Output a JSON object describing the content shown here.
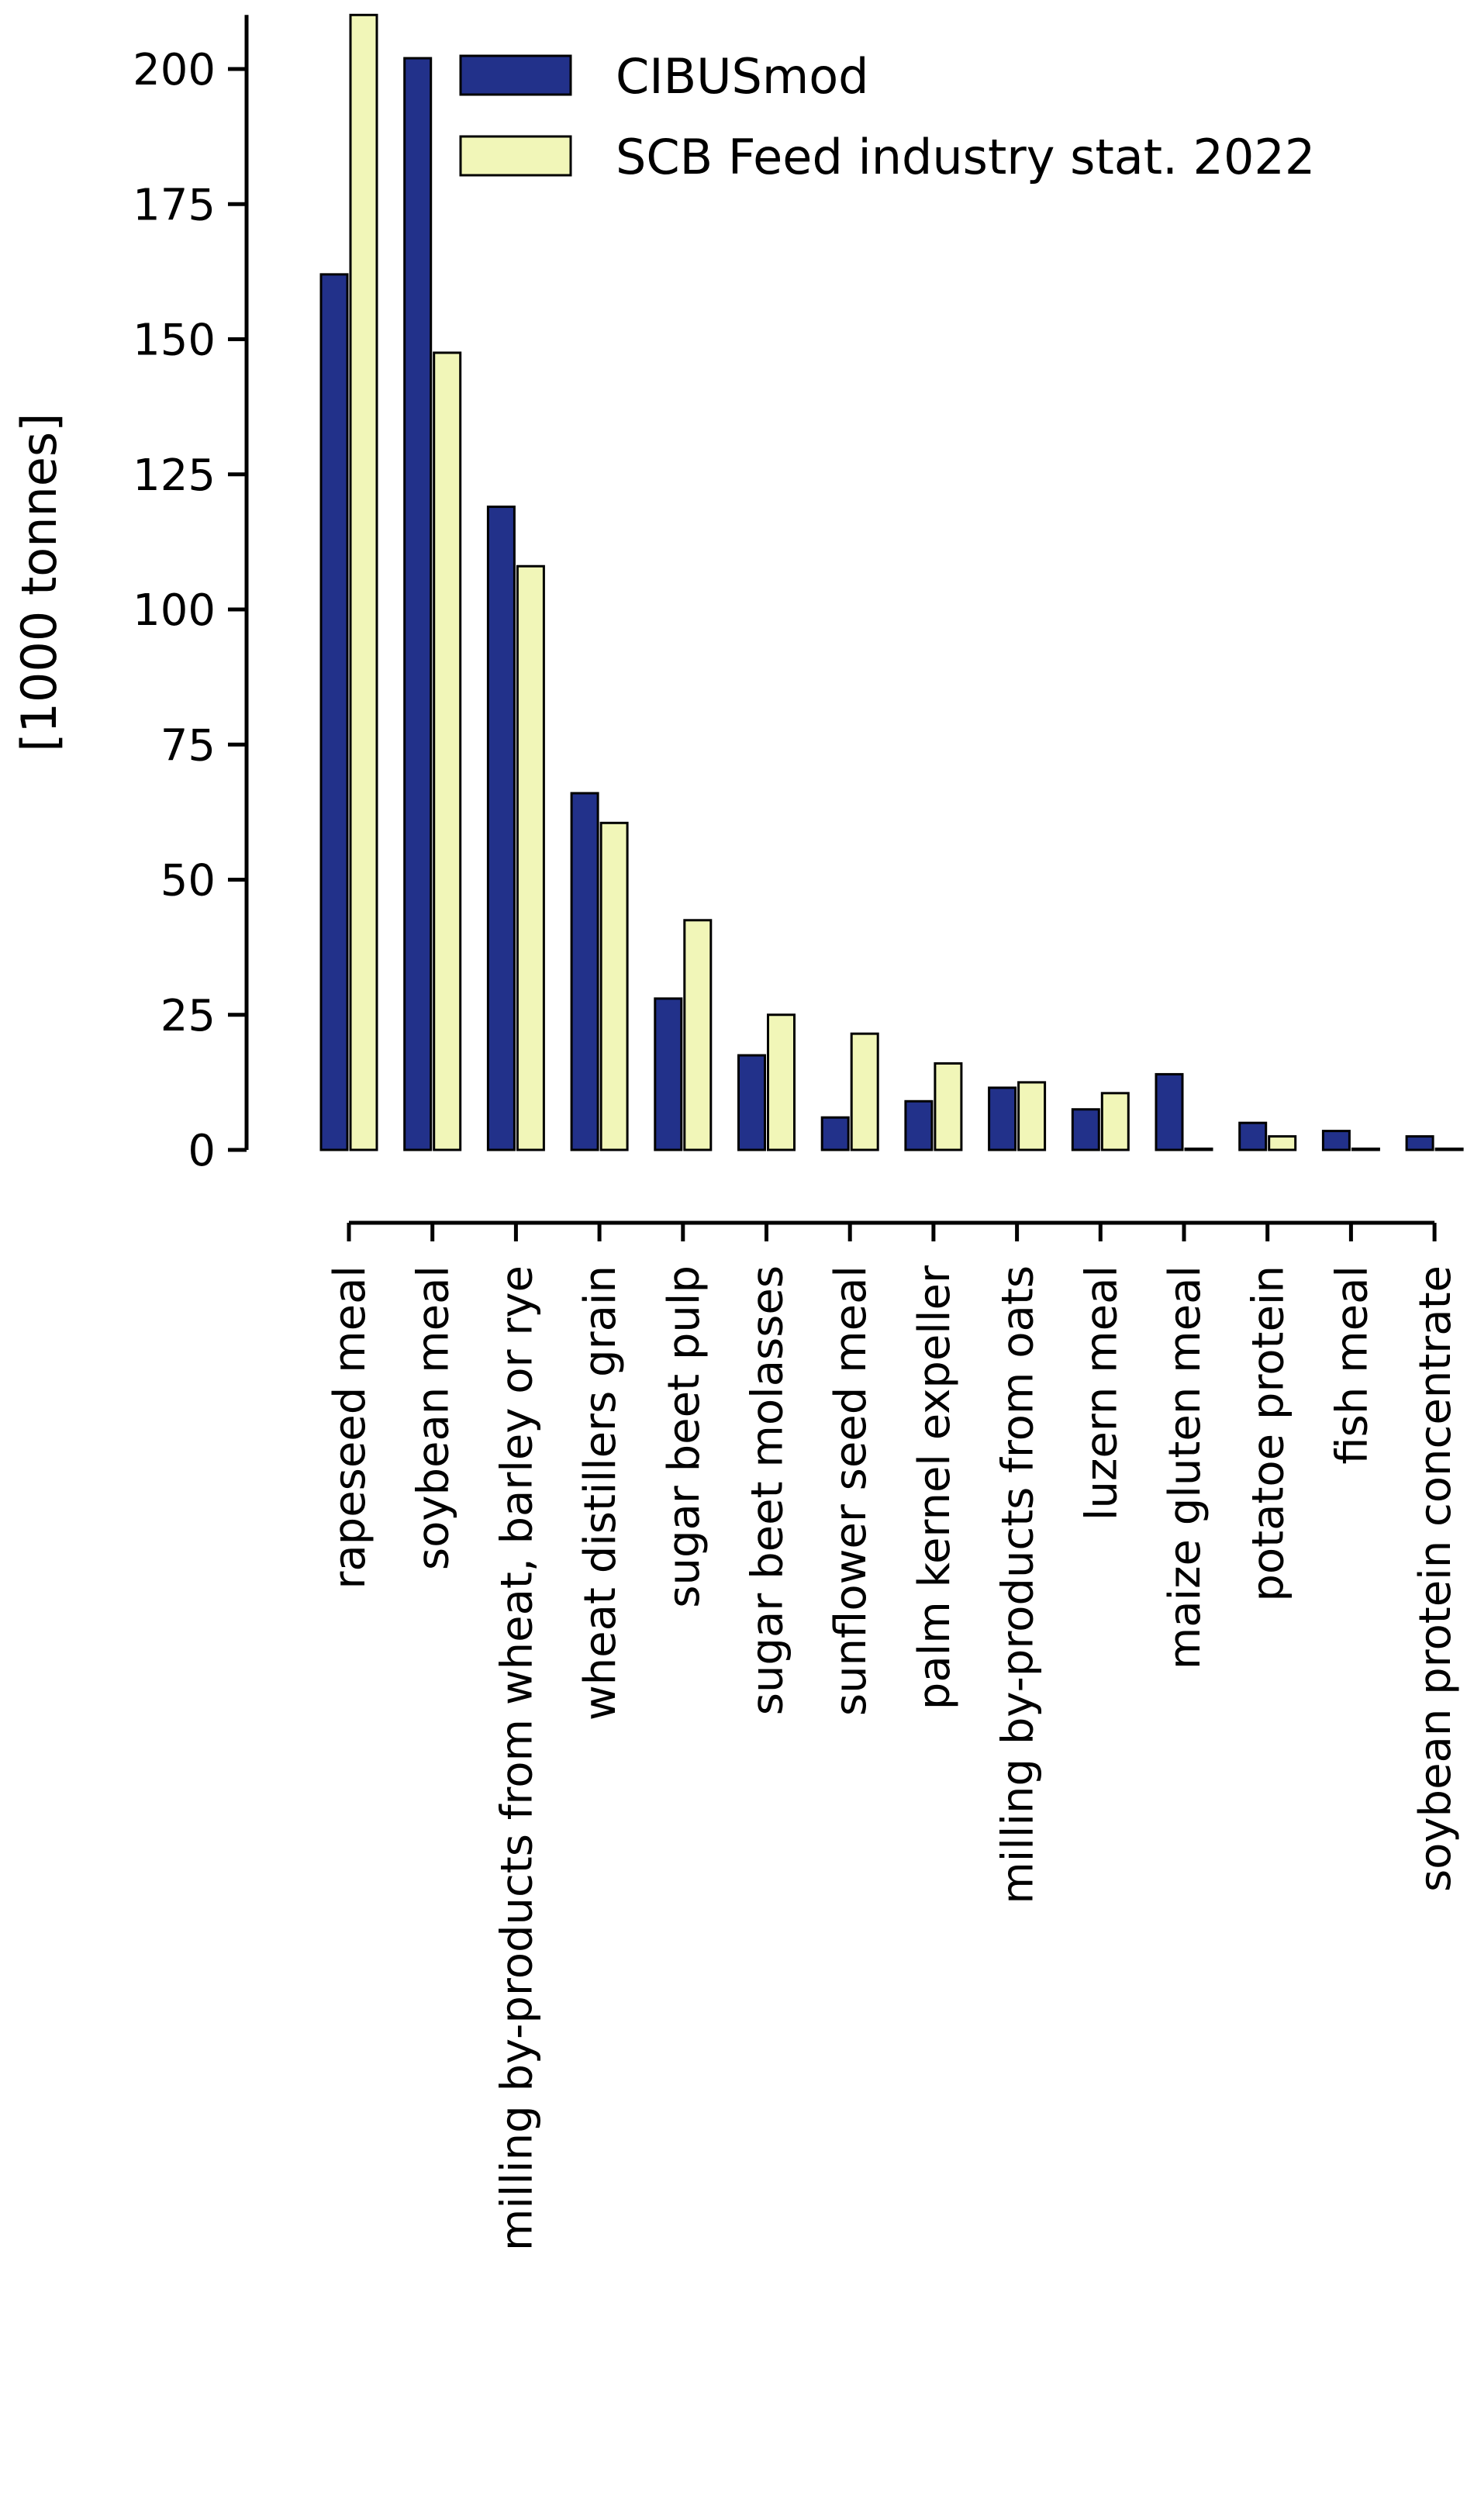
{
  "chart_data": {
    "type": "bar",
    "title": "",
    "xlabel": "",
    "ylabel": "[1000 tonnes]",
    "ylim": [
      0,
      210
    ],
    "yticks": [
      0,
      25,
      50,
      75,
      100,
      125,
      150,
      175,
      200
    ],
    "grid": false,
    "legend_position": "top-right",
    "categories": [
      "rapeseed meal",
      "soybean meal",
      "milling by-products from wheat, barley or rye",
      "wheat distillers grain",
      "sugar beet pulp",
      "sugar beet molasses",
      "sunflower seed meal",
      "palm kernel expeller",
      "milling by-products from oats",
      "luzern meal",
      "maize gluten meal",
      "potatoe protein",
      "fish meal",
      "soybean protein concentrate"
    ],
    "series": [
      {
        "name": "CIBUSmod",
        "color": "#22318a",
        "values": [
          162,
          202,
          119,
          66,
          28,
          17.5,
          6,
          9,
          11.5,
          7.5,
          14,
          5,
          3.5,
          2.5
        ]
      },
      {
        "name": "SCB Feed industry stat. 2022",
        "color": "#f1f6b8",
        "values": [
          210,
          147.5,
          108,
          60.5,
          42.5,
          25,
          21.5,
          16,
          12.5,
          10.5,
          0,
          2.5,
          0,
          0
        ]
      }
    ]
  }
}
